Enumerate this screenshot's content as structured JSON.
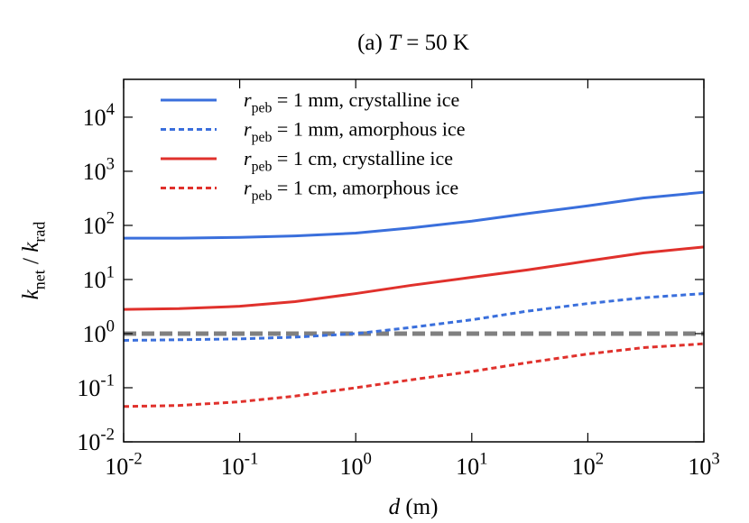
{
  "chart_data": {
    "type": "line",
    "title": "(a) *T* = 50 K",
    "xlabel": "*d* (m)",
    "ylabel": "*k*_{net} / *k*_{rad}",
    "xscale": "log",
    "yscale": "log",
    "xlim": [
      0.01,
      1000
    ],
    "ylim": [
      0.01,
      50000
    ],
    "xticks": [
      {
        "value": 0.01,
        "label": "10^{-2}"
      },
      {
        "value": 0.1,
        "label": "10^{-1}"
      },
      {
        "value": 1,
        "label": "10^{0}"
      },
      {
        "value": 10,
        "label": "10^{1}"
      },
      {
        "value": 100,
        "label": "10^{2}"
      },
      {
        "value": 1000,
        "label": "10^{3}"
      }
    ],
    "yticks": [
      {
        "value": 0.01,
        "label": "10^{-2}"
      },
      {
        "value": 0.1,
        "label": "10^{-1}"
      },
      {
        "value": 1,
        "label": "10^{0}"
      },
      {
        "value": 10,
        "label": "10^{1}"
      },
      {
        "value": 100,
        "label": "10^{2}"
      },
      {
        "value": 1000,
        "label": "10^{3}"
      },
      {
        "value": 10000,
        "label": "10^{4}"
      }
    ],
    "legend": "upper left",
    "x": [
      0.01,
      0.03,
      0.1,
      0.3,
      1,
      3,
      10,
      30,
      100,
      300,
      1000
    ],
    "series": [
      {
        "name": "*r*_{peb} = 1 mm, crystalline ice",
        "color": "#3a6fdc",
        "style": "solid",
        "values": [
          58,
          58,
          60,
          64,
          72,
          90,
          120,
          165,
          230,
          320,
          410
        ]
      },
      {
        "name": "*r*_{peb} = 1 mm, amorphous ice",
        "color": "#3a6fdc",
        "style": "dashed",
        "values": [
          0.75,
          0.77,
          0.8,
          0.86,
          1.0,
          1.3,
          1.8,
          2.6,
          3.6,
          4.6,
          5.5
        ]
      },
      {
        "name": "*r*_{peb} = 1 cm, crystalline ice",
        "color": "#e0312c",
        "style": "solid",
        "values": [
          2.8,
          2.9,
          3.2,
          3.9,
          5.5,
          7.8,
          11,
          15,
          22,
          31,
          40
        ]
      },
      {
        "name": "*r*_{peb} = 1 cm, amorphous ice",
        "color": "#e0312c",
        "style": "dashed",
        "values": [
          0.045,
          0.047,
          0.055,
          0.07,
          0.1,
          0.14,
          0.2,
          0.29,
          0.42,
          0.55,
          0.65
        ]
      }
    ],
    "hlines": [
      {
        "y": 1,
        "color": "#808080",
        "style": "dashed"
      }
    ]
  }
}
